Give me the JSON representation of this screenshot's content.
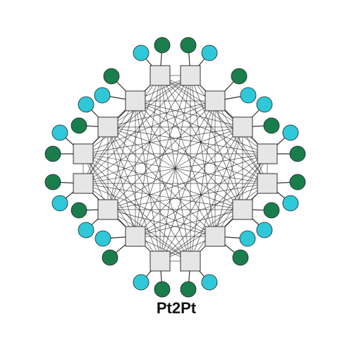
{
  "label": "Pt2Pt"
}
